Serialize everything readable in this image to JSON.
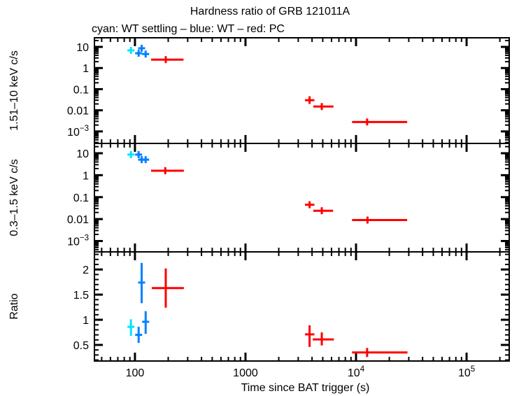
{
  "chart_data": {
    "type": "scatter",
    "title": "Hardness ratio of GRB 121011A",
    "subtitle": "cyan: WT settling – blue: WT – red: PC",
    "xlabel": "Time since BAT trigger (s)",
    "xscale": "log",
    "xlim": [
      43,
      243000
    ],
    "x_major_ticks": [
      100,
      1000,
      10000,
      100000
    ],
    "x_tick_labels": [
      "100",
      "1000",
      "10^4",
      "10^5"
    ],
    "grid": false,
    "legend": [
      {
        "color_name": "cyan",
        "label": "WT settling"
      },
      {
        "color_name": "blue",
        "label": "WT"
      },
      {
        "color_name": "red",
        "label": "PC"
      }
    ],
    "colors": {
      "cyan": "#00e5ff",
      "blue": "#0080ff",
      "red": "#ff0000",
      "axis": "#000000"
    },
    "panels": [
      {
        "ylabel": "1.51–10 keV c/s",
        "yscale": "log",
        "ylim": [
          0.00027,
          27
        ],
        "y_tick_values": [
          10,
          1,
          0.1,
          0.01,
          0.001
        ],
        "y_tick_labels": [
          "10",
          "1",
          "0.1",
          "0.01",
          "10^−3"
        ],
        "points": [
          {
            "series": "WT settling",
            "color": "cyan",
            "x": 92,
            "x_lo": 87,
            "x_hi": 97,
            "y": 6.8,
            "y_lo": 6.0,
            "y_hi": 7.7
          },
          {
            "series": "WT",
            "color": "blue",
            "x": 108,
            "x_lo": 104,
            "x_hi": 112,
            "y": 5.0,
            "y_lo": 4.4,
            "y_hi": 5.7
          },
          {
            "series": "WT",
            "color": "blue",
            "x": 115,
            "x_lo": 111,
            "x_hi": 119,
            "y": 8.6,
            "y_lo": 7.6,
            "y_hi": 9.7
          },
          {
            "series": "WT",
            "color": "blue",
            "x": 125,
            "x_lo": 120,
            "x_hi": 130,
            "y": 4.6,
            "y_lo": 4.0,
            "y_hi": 5.2
          },
          {
            "series": "PC",
            "color": "red",
            "x": 190,
            "x_lo": 140,
            "x_hi": 275,
            "y": 2.5,
            "y_lo": 2.2,
            "y_hi": 2.9
          },
          {
            "series": "PC",
            "color": "red",
            "x": 3800,
            "x_lo": 3450,
            "x_hi": 4200,
            "y": 0.03,
            "y_lo": 0.02,
            "y_hi": 0.046
          },
          {
            "series": "PC",
            "color": "red",
            "x": 4900,
            "x_lo": 4100,
            "x_hi": 6250,
            "y": 0.015,
            "y_lo": 0.012,
            "y_hi": 0.019
          },
          {
            "series": "PC",
            "color": "red",
            "x": 12600,
            "x_lo": 9200,
            "x_hi": 29000,
            "y": 0.0028,
            "y_lo": 0.0021,
            "y_hi": 0.0038
          }
        ]
      },
      {
        "ylabel": "0.3–1.5 keV c/s",
        "yscale": "log",
        "ylim": [
          0.00032,
          28
        ],
        "y_tick_values": [
          10,
          1,
          0.1,
          0.01,
          0.001
        ],
        "y_tick_labels": [
          "10",
          "1",
          "0.1",
          "0.01",
          "10^−3"
        ],
        "points": [
          {
            "series": "WT settling",
            "color": "cyan",
            "x": 92,
            "x_lo": 87,
            "x_hi": 97,
            "y": 8.7,
            "y_lo": 7.8,
            "y_hi": 9.7
          },
          {
            "series": "WT",
            "color": "blue",
            "x": 108,
            "x_lo": 104,
            "x_hi": 112,
            "y": 8.7,
            "y_lo": 7.8,
            "y_hi": 9.7
          },
          {
            "series": "WT",
            "color": "blue",
            "x": 115,
            "x_lo": 111,
            "x_hi": 119,
            "y": 5.1,
            "y_lo": 4.5,
            "y_hi": 5.8
          },
          {
            "series": "WT",
            "color": "blue",
            "x": 125,
            "x_lo": 120,
            "x_hi": 130,
            "y": 5.1,
            "y_lo": 4.5,
            "y_hi": 5.8
          },
          {
            "series": "PC",
            "color": "red",
            "x": 188,
            "x_lo": 140,
            "x_hi": 277,
            "y": 1.6,
            "y_lo": 1.4,
            "y_hi": 1.85
          },
          {
            "series": "PC",
            "color": "red",
            "x": 3800,
            "x_lo": 3450,
            "x_hi": 4200,
            "y": 0.045,
            "y_lo": 0.037,
            "y_hi": 0.056
          },
          {
            "series": "PC",
            "color": "red",
            "x": 4900,
            "x_lo": 4100,
            "x_hi": 6200,
            "y": 0.024,
            "y_lo": 0.02,
            "y_hi": 0.029
          },
          {
            "series": "PC",
            "color": "red",
            "x": 12700,
            "x_lo": 9200,
            "x_hi": 29000,
            "y": 0.009,
            "y_lo": 0.0078,
            "y_hi": 0.0105
          }
        ]
      },
      {
        "ylabel": "Ratio",
        "yscale": "linear",
        "ylim": [
          0.18,
          2.35
        ],
        "y_tick_values": [
          0.5,
          1,
          1.5,
          2
        ],
        "y_tick_labels": [
          "0.5",
          "1",
          "1.5",
          "2"
        ],
        "y_minor_step": 0.1,
        "points": [
          {
            "series": "WT settling",
            "color": "cyan",
            "x": 92,
            "x_lo": 87,
            "x_hi": 97,
            "y": 0.86,
            "y_lo": 0.68,
            "y_hi": 1.01
          },
          {
            "series": "WT",
            "color": "blue",
            "x": 108,
            "x_lo": 104,
            "x_hi": 112,
            "y": 0.7,
            "y_lo": 0.54,
            "y_hi": 0.86
          },
          {
            "series": "WT",
            "color": "blue",
            "x": 115,
            "x_lo": 111,
            "x_hi": 119,
            "y": 1.74,
            "y_lo": 1.33,
            "y_hi": 2.13
          },
          {
            "series": "WT",
            "color": "blue",
            "x": 125,
            "x_lo": 120,
            "x_hi": 130,
            "y": 0.96,
            "y_lo": 0.72,
            "y_hi": 1.17
          },
          {
            "series": "PC",
            "color": "red",
            "x": 190,
            "x_lo": 142,
            "x_hi": 277,
            "y": 1.63,
            "y_lo": 1.24,
            "y_hi": 2.02
          },
          {
            "series": "PC",
            "color": "red",
            "x": 3800,
            "x_lo": 3450,
            "x_hi": 4200,
            "y": 0.71,
            "y_lo": 0.46,
            "y_hi": 0.89
          },
          {
            "series": "PC",
            "color": "red",
            "x": 4900,
            "x_lo": 4060,
            "x_hi": 6300,
            "y": 0.61,
            "y_lo": 0.49,
            "y_hi": 0.75
          },
          {
            "series": "PC",
            "color": "red",
            "x": 12600,
            "x_lo": 9200,
            "x_hi": 29200,
            "y": 0.35,
            "y_lo": 0.26,
            "y_hi": 0.44
          }
        ]
      }
    ]
  }
}
